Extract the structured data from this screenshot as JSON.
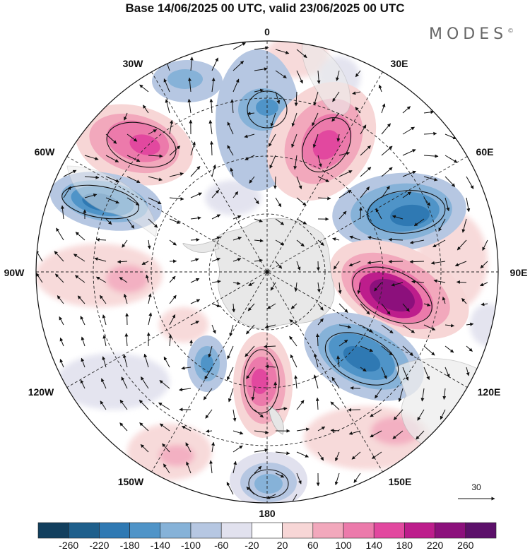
{
  "title": "Base 14/06/2025 00 UTC, valid 23/06/2025 00 UTC",
  "brand": "MODES",
  "brand_mark": "©",
  "longitude_labels": {
    "0": "0",
    "30E": "30E",
    "60E": "60E",
    "90E": "90E",
    "120E": "120E",
    "150E": "150E",
    "180": "180",
    "150W": "150W",
    "120W": "120W",
    "90W": "90W",
    "60W": "60W",
    "30W": "30W"
  },
  "reference_vector": "30",
  "colorbar": {
    "labels": [
      "-260",
      "-220",
      "-180",
      "-140",
      "-100",
      "-60",
      "-20",
      "20",
      "60",
      "100",
      "140",
      "180",
      "220",
      "260"
    ],
    "colors": [
      "#123f5e",
      "#1e5f8c",
      "#2f79b3",
      "#4f94c8",
      "#86b2d8",
      "#b6c7e2",
      "#e1e1ee",
      "#ffffff",
      "#f7d6d6",
      "#f2a8bc",
      "#ec7aab",
      "#e2489f",
      "#bd1d8c",
      "#8c107c",
      "#5c106a"
    ]
  }
}
